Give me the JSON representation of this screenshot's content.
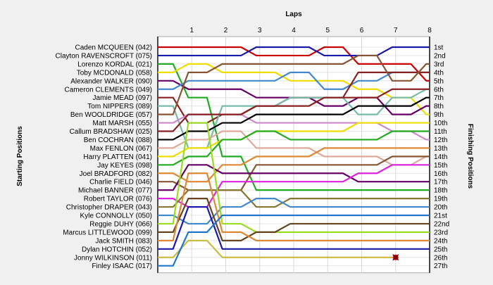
{
  "chart_data": {
    "type": "line",
    "title": "",
    "top_axis_label": "Laps",
    "left_axis_label": "Starting Positions",
    "right_axis_label": "Finishing Positions",
    "laps": [
      "1",
      "2",
      "3",
      "4",
      "5",
      "6",
      "7",
      "8"
    ],
    "grid": true,
    "finishing_labels": [
      "1st",
      "2nd",
      "3rd",
      "4th",
      "5th",
      "6th",
      "7th",
      "8th",
      "9th",
      "10th",
      "11th",
      "12th",
      "13th",
      "14th",
      "15th",
      "16th",
      "17th",
      "18th",
      "19th",
      "20th",
      "21st",
      "22nd",
      "23rd",
      "24th",
      "25th",
      "26th",
      "27th"
    ],
    "series": [
      {
        "name": "Caden MCQUEEN (042)",
        "color": "#cc0000",
        "positions": [
          1,
          1,
          1,
          2,
          2,
          1,
          3,
          3,
          5
        ]
      },
      {
        "name": "Clayton RAVENSCROFT (075)",
        "color": "#1a1aaa",
        "positions": [
          2,
          2,
          2,
          1,
          1,
          2,
          2,
          1,
          1
        ]
      },
      {
        "name": "Lorenzo KORDAL (021)",
        "color": "#22aa22",
        "positions": [
          3,
          7,
          14,
          18,
          18,
          18,
          18,
          18,
          18
        ]
      },
      {
        "name": "Toby MCDONALD (058)",
        "color": "#eedd00",
        "positions": [
          4,
          3,
          4,
          4,
          5,
          5,
          6,
          7,
          9
        ]
      },
      {
        "name": "Alexander WALKER (090)",
        "color": "#660066",
        "positions": [
          5,
          6,
          6,
          7,
          7,
          8,
          7,
          9,
          8
        ]
      },
      {
        "name": "Cameron CLEMENTS (049)",
        "color": "#4488cc",
        "positions": [
          6,
          5,
          5,
          5,
          4,
          6,
          5,
          4,
          4
        ]
      },
      {
        "name": "Jamie MEAD (097)",
        "color": "#882222",
        "positions": [
          7,
          10,
          9,
          8,
          7,
          7,
          4,
          4,
          4
        ]
      },
      {
        "name": "Tom NIPPERS (089)",
        "color": "#77bbaa",
        "positions": [
          8,
          13,
          8,
          8,
          7,
          7,
          9,
          7,
          6
        ]
      },
      {
        "name": "Ben WOOLDRIDGE (057)",
        "color": "#885533",
        "positions": [
          9,
          4,
          3,
          3,
          3,
          3,
          2,
          5,
          3
        ]
      },
      {
        "name": "Matt MARSH (055)",
        "color": "#cc88cc",
        "positions": [
          10,
          9,
          9,
          10,
          10,
          10,
          10,
          11,
          12
        ]
      },
      {
        "name": "Callum BRADSHAW (025)",
        "color": "#882222",
        "positions": [
          11,
          9,
          9,
          8,
          8,
          7,
          7,
          6,
          6
        ]
      },
      {
        "name": "Ben COCHRAN (088)",
        "color": "#000000",
        "positions": [
          12,
          11,
          10,
          9,
          9,
          9,
          8,
          8,
          7
        ]
      },
      {
        "name": "Max FENLON (067)",
        "color": "#ddaa99",
        "positions": [
          13,
          12,
          11,
          13,
          13,
          14,
          14,
          15,
          14
        ]
      },
      {
        "name": "Harry PLATTEN (041)",
        "color": "#eedd00",
        "positions": [
          14,
          13,
          12,
          11,
          11,
          11,
          10,
          10,
          10
        ]
      },
      {
        "name": "Jay KEYES (098)",
        "color": "#22aa22",
        "positions": [
          15,
          14,
          12,
          11,
          12,
          12,
          12,
          11,
          11
        ]
      },
      {
        "name": "Joel BRADFORD (082)",
        "color": "#dd8833",
        "positions": [
          16,
          17,
          15,
          14,
          14,
          13,
          13,
          13,
          13
        ]
      },
      {
        "name": "Charlie FIELD (046)",
        "color": "#885533",
        "positions": [
          17,
          18,
          18,
          15,
          15,
          15,
          15,
          14,
          14
        ]
      },
      {
        "name": "Michael BANNER (077)",
        "color": "#660066",
        "positions": [
          18,
          15,
          16,
          16,
          16,
          16,
          17,
          17,
          17
        ]
      },
      {
        "name": "Robert TAYLOR (076)",
        "color": "#dd22dd",
        "positions": [
          19,
          20,
          17,
          17,
          17,
          17,
          16,
          15,
          15
        ]
      },
      {
        "name": "Christopher DRAPER (043)",
        "color": "#887733",
        "positions": [
          20,
          18,
          18,
          20,
          19,
          19,
          19,
          19,
          19
        ]
      },
      {
        "name": "Kyle CONNOLLY (050)",
        "color": "#4488cc",
        "positions": [
          21,
          22,
          20,
          19,
          20,
          20,
          20,
          20,
          20
        ]
      },
      {
        "name": "Reggie DUHY (066)",
        "color": "#99dd22",
        "positions": [
          22,
          10,
          22,
          23,
          23,
          23,
          23,
          23,
          23
        ]
      },
      {
        "name": "Marcus LITTLEWOOD (099)",
        "color": "#664422",
        "positions": [
          23,
          19,
          24,
          23,
          22,
          22,
          22,
          22,
          22
        ]
      },
      {
        "name": "Jack SMITH (083)",
        "color": "#dd8833",
        "positions": [
          24,
          16,
          23,
          24,
          24,
          24,
          24,
          24,
          24
        ]
      },
      {
        "name": "Dylan HOTCHIN (052)",
        "color": "#1a1aaa",
        "positions": [
          25,
          20,
          25,
          25,
          25,
          25,
          25,
          25,
          25
        ]
      },
      {
        "name": "Jonny WILKINSON (011)",
        "color": "#ccbb44",
        "positions": [
          26,
          24,
          26,
          26,
          26,
          26,
          26,
          26
        ]
      },
      {
        "name": "Finley ISAAC (017)",
        "color": "#2277cc",
        "positions": [
          27,
          23,
          21,
          21,
          21,
          21,
          21,
          21,
          21
        ]
      }
    ],
    "retired_marker_color": "#cc0000"
  }
}
